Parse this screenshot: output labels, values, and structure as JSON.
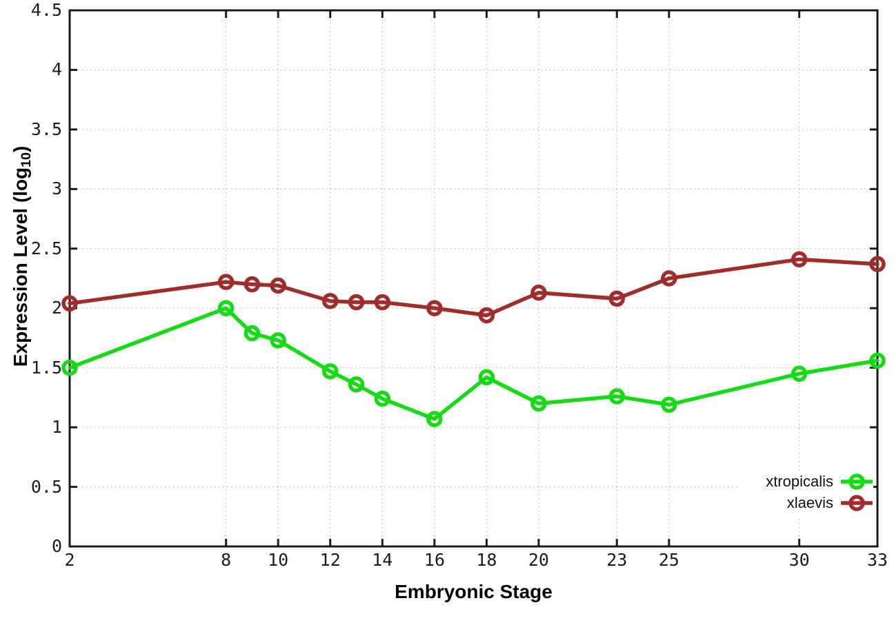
{
  "chart_data": {
    "type": "line",
    "xlabel": "Embryonic Stage",
    "ylabel": {
      "pre": "Expression Level (log",
      "sub": "10",
      "post": ")"
    },
    "x": [
      2,
      8,
      9,
      10,
      12,
      13,
      14,
      16,
      18,
      20,
      23,
      25,
      30,
      33
    ],
    "xticks": [
      2,
      8,
      10,
      12,
      14,
      16,
      18,
      20,
      23,
      25,
      30,
      33
    ],
    "yticks": [
      0,
      0.5,
      1,
      1.5,
      2,
      2.5,
      3,
      3.5,
      4,
      4.5
    ],
    "ytick_labels": [
      "0",
      "0.5",
      "1",
      "1.5",
      "2",
      "2.5",
      "3",
      "3.5",
      "4",
      "4.5"
    ],
    "xlim": [
      2,
      33
    ],
    "ylim": [
      0,
      4.5
    ],
    "grid": true,
    "legend_position": "bottom-right",
    "series": [
      {
        "name": "xtropicalis",
        "color": "#15DB15",
        "values": [
          1.5,
          2.0,
          1.79,
          1.73,
          1.47,
          1.36,
          1.24,
          1.07,
          1.42,
          1.2,
          1.26,
          1.19,
          1.45,
          1.56
        ]
      },
      {
        "name": "xlaevis",
        "color": "#A02C2C",
        "values": [
          2.04,
          2.22,
          2.2,
          2.19,
          2.06,
          2.05,
          2.05,
          2.0,
          1.94,
          2.13,
          2.08,
          2.25,
          2.41,
          2.37
        ]
      }
    ]
  },
  "colors": {
    "background": "#ffffff",
    "axis": "#1a1a1a",
    "grid": "#b8b8b8",
    "tick_text": "#1c1c1c"
  }
}
